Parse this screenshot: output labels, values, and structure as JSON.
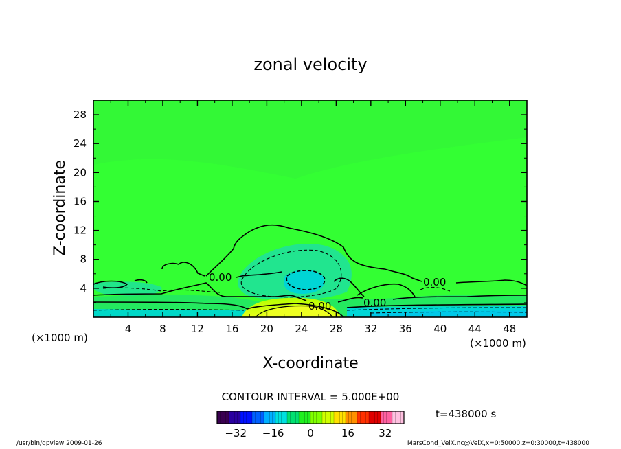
{
  "chart_data": {
    "type": "heatmap",
    "title": "zonal velocity",
    "xlabel": "X-coordinate",
    "ylabel": "Z-coordinate",
    "x_unit": "(×1000 m)",
    "y_unit": "(×1000 m)",
    "xlim": [
      0,
      50
    ],
    "ylim": [
      0,
      30
    ],
    "x_ticks": [
      "4",
      "8",
      "12",
      "16",
      "20",
      "24",
      "28",
      "32",
      "36",
      "40",
      "44",
      "48"
    ],
    "y_ticks": [
      "4",
      "8",
      "12",
      "16",
      "20",
      "24",
      "28"
    ],
    "contour_labels": [
      "0.00",
      "0.00",
      "0.00",
      "0.00"
    ],
    "contour_interval": "CONTOUR INTERVAL = 5.000E+00",
    "time_label": "t=438000 s",
    "colorbar": {
      "min": -40,
      "max": 40,
      "ticks": [
        "−32",
        "−16",
        "0",
        "16",
        "32"
      ],
      "colors": [
        "#3a0050",
        "#2a00a0",
        "#0010ff",
        "#0060ff",
        "#00b0ff",
        "#00e0e0",
        "#00e070",
        "#20f020",
        "#80ff00",
        "#d0ff00",
        "#ffe000",
        "#ff9000",
        "#ff3000",
        "#e00000",
        "#ff60a0",
        "#ffc0e0"
      ]
    },
    "field_colors": {
      "background": "#33ff33",
      "weak_negative": "#00e59a",
      "negative": "#00d8d8",
      "positive": "#b4ff00",
      "strong_positive": "#e6ff1a"
    }
  },
  "footer": {
    "left": "/usr/bin/gpview   2009-01-26",
    "right": "MarsCond_VelX.nc@VelX,x=0:50000,z=0:30000,t=438000"
  }
}
